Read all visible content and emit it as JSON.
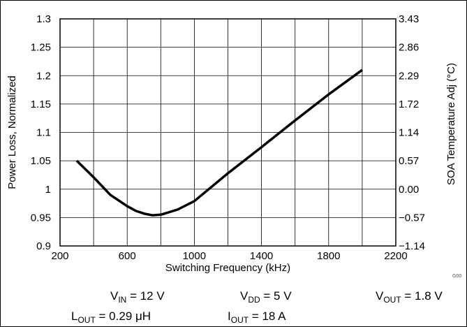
{
  "chart_data": {
    "type": "line",
    "xlabel": "Switching Frequency (kHz)",
    "ylabel": "Power Loss, Normalized",
    "y2label": "SOA Temperature Adj (°C)",
    "xlim": [
      200,
      2200
    ],
    "ylim": [
      0.9,
      1.3
    ],
    "xticks": [
      "200",
      "600",
      "1000",
      "1400",
      "1800",
      "2200"
    ],
    "xtick_values": [
      200,
      600,
      1000,
      1400,
      1800,
      2200
    ],
    "yticks": [
      "0.9",
      "0.95",
      "1",
      "1.05",
      "1.1",
      "1.15",
      "1.2",
      "1.25",
      "1.3"
    ],
    "ytick_values": [
      0.9,
      0.95,
      1.0,
      1.05,
      1.1,
      1.15,
      1.2,
      1.25,
      1.3
    ],
    "y2ticks": [
      "−1.14",
      "−0.57",
      "0.00",
      "0.57",
      "1.14",
      "1.72",
      "2.29",
      "2.86",
      "3.43"
    ],
    "x_grid_values": [
      200,
      400,
      600,
      800,
      1000,
      1200,
      1400,
      1600,
      1800,
      2000,
      2200
    ],
    "grid": true,
    "series": [
      {
        "x": [
          300,
          400,
          500,
          600,
          650,
          700,
          750,
          800,
          900,
          1000,
          1200,
          1400,
          1600,
          1800,
          2000
        ],
        "y": [
          1.05,
          1.021,
          0.99,
          0.97,
          0.962,
          0.957,
          0.954,
          0.955,
          0.964,
          0.979,
          1.028,
          1.074,
          1.121,
          1.167,
          1.21
        ]
      }
    ]
  },
  "figure_code": "G00",
  "conditions": {
    "vin": {
      "sym": "V",
      "sub": "IN",
      "rest": " = 12 V"
    },
    "vdd": {
      "sym": "V",
      "sub": "DD",
      "rest": " = 5 V"
    },
    "vout": {
      "sym": "V",
      "sub": "OUT",
      "rest": " = 1.8 V"
    },
    "lout": {
      "sym": "L",
      "sub": "OUT",
      "rest": " = 0.29 μH"
    },
    "iout": {
      "sym": "I",
      "sub": "OUT",
      "rest": " = 18 A"
    }
  }
}
